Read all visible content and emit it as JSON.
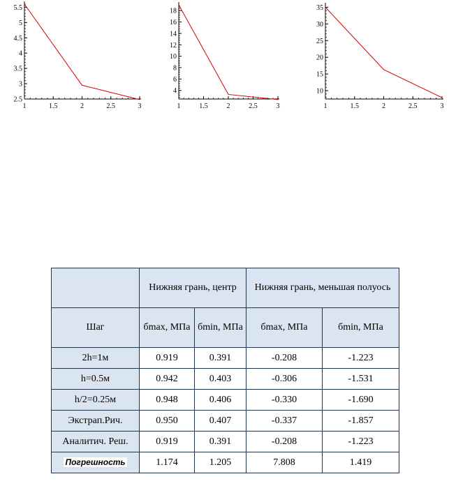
{
  "chart_data": [
    {
      "type": "line",
      "x": [
        1,
        2,
        3
      ],
      "series": [
        {
          "values": [
            5.6,
            2.95,
            2.48
          ],
          "color": "#d40000"
        }
      ],
      "xlim": [
        1,
        3
      ],
      "ylim": [
        2.5,
        5.6
      ],
      "xticks": [
        "1",
        "1.5",
        "2",
        "2.5",
        "3"
      ],
      "yticks": [
        "2.5",
        "3",
        "3.5",
        "4",
        "4.5",
        "5",
        "5.5"
      ],
      "grid": false
    },
    {
      "type": "line",
      "x": [
        1,
        2,
        3
      ],
      "series": [
        {
          "values": [
            19.0,
            3.3,
            2.4
          ],
          "color": "#d40000"
        }
      ],
      "xlim": [
        1,
        3
      ],
      "ylim": [
        2.5,
        19.0
      ],
      "xticks": [
        "1",
        "1.5",
        "2",
        "2.5",
        "3"
      ],
      "yticks": [
        "4",
        "6",
        "8",
        "10",
        "12",
        "14",
        "16",
        "18"
      ],
      "grid": false
    },
    {
      "type": "line",
      "x": [
        1,
        2,
        3
      ],
      "series": [
        {
          "values": [
            35.0,
            16.3,
            7.9
          ],
          "color": "#d40000"
        }
      ],
      "xlim": [
        1,
        3
      ],
      "ylim": [
        7.5,
        35.5
      ],
      "xticks": [
        "1",
        "1.5",
        "2",
        "2.5",
        "3"
      ],
      "yticks": [
        "10",
        "15",
        "20",
        "25",
        "30",
        "35"
      ],
      "grid": false
    }
  ],
  "table": {
    "header": {
      "group_center": "Нижняя грань, центр",
      "group_minor": "Нижняя грань, меньшая полуось",
      "step": "Шаг",
      "cols": [
        "бmax, МПа",
        "бmin, МПа",
        "бmax, МПа",
        "бmin, МПа"
      ]
    },
    "rows": [
      {
        "label": "2h=1м",
        "values": [
          "0.919",
          "0.391",
          "-0.208",
          "-1.223"
        ]
      },
      {
        "label": "h=0.5м",
        "values": [
          "0.942",
          "0.403",
          "-0.306",
          "-1.531"
        ]
      },
      {
        "label": "h/2=0.25м",
        "values": [
          "0.948",
          "0.406",
          "-0.330",
          "-1.690"
        ]
      },
      {
        "label": "Экстрап.Рич.",
        "values": [
          "0.950",
          "0.407",
          "-0.337",
          "-1.857"
        ]
      },
      {
        "label": "Аналитич. Реш.",
        "values": [
          "0.919",
          "0.391",
          "-0.208",
          "-1.223"
        ]
      },
      {
        "label": "Погрешность",
        "values": [
          "1.174",
          "1.205",
          "7.808",
          "1.419"
        ]
      }
    ]
  }
}
